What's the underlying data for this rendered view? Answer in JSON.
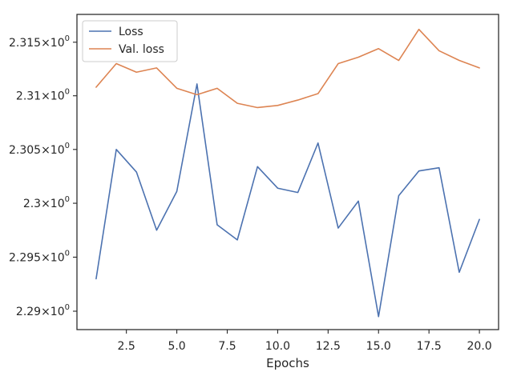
{
  "chart_data": {
    "type": "line",
    "xlabel": "Epochs",
    "ylabel": "",
    "title": "",
    "xlim": [
      0.05,
      20.95
    ],
    "ylim": [
      2.2883,
      2.3176
    ],
    "y_scale": "log",
    "x_ticks": [
      2.5,
      5.0,
      7.5,
      10.0,
      12.5,
      15.0,
      17.5,
      20.0
    ],
    "x_tick_labels": [
      "2.5",
      "5.0",
      "7.5",
      "10.0",
      "12.5",
      "15.0",
      "17.5",
      "20.0"
    ],
    "y_ticks": [
      2.29,
      2.295,
      2.3,
      2.305,
      2.31,
      2.315
    ],
    "y_tick_labels": [
      "2.29",
      "2.295",
      "2.3",
      "2.305",
      "2.31",
      "2.315"
    ],
    "y_tick_exponent": "0",
    "grid": false,
    "legend_position": "top-left",
    "x": [
      1,
      2,
      3,
      4,
      5,
      6,
      7,
      8,
      9,
      10,
      11,
      12,
      13,
      14,
      15,
      16,
      17,
      18,
      19,
      20
    ],
    "series": [
      {
        "name": "Loss",
        "color": "#4c72b0",
        "values": [
          2.293,
          2.305,
          2.3029,
          2.2975,
          2.3011,
          2.3111,
          2.298,
          2.2966,
          2.3034,
          2.3014,
          2.301,
          2.3056,
          2.2977,
          2.3002,
          2.2895,
          2.3007,
          2.303,
          2.3033,
          2.2936,
          2.2985
        ]
      },
      {
        "name": "Val. loss",
        "color": "#dd8452",
        "values": [
          2.3108,
          2.313,
          2.3122,
          2.3126,
          2.3107,
          2.3101,
          2.3107,
          2.3093,
          2.3089,
          2.3091,
          2.3096,
          2.3102,
          2.313,
          2.3136,
          2.3144,
          2.3133,
          2.3162,
          2.3142,
          2.3133,
          2.3126
        ]
      }
    ]
  }
}
